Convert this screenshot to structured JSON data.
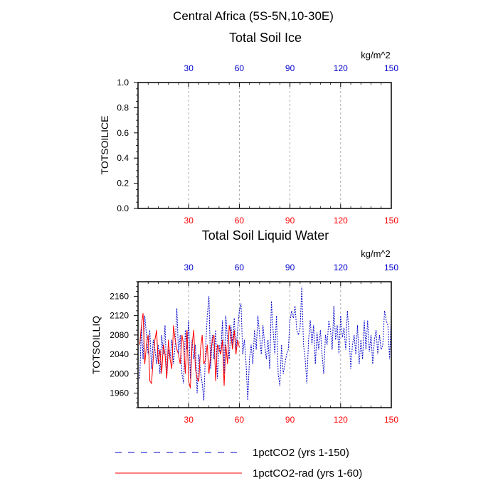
{
  "figure": {
    "title": "Central Africa (5S-5N,10-30E)",
    "legend": [
      {
        "label": "1pctCO2 (yrs 1-150)",
        "color": "#0000cc",
        "style": "dashed"
      },
      {
        "label": "1pctCO2-rad (yrs 1-60)",
        "color": "#ff0000",
        "style": "solid"
      }
    ]
  },
  "colors": {
    "blue_axis": "#0000cc",
    "red_axis": "#ff0000",
    "grid": "#9a9a9a"
  },
  "chart_data": [
    {
      "type": "line",
      "title": "Total Soil Ice",
      "ylabel": "TOTSOILICE",
      "unit": "kg/m^2",
      "xlim": [
        0,
        150
      ],
      "ylim": [
        0,
        1
      ],
      "x_ticks": [
        30,
        60,
        90,
        120,
        150
      ],
      "y_ticks": [
        "0.0",
        "0.2",
        "0.4",
        "0.6",
        "0.8",
        "1.0"
      ],
      "y_tick_values": [
        0,
        0.2,
        0.4,
        0.6,
        0.8,
        1.0
      ],
      "grid": "vertical dashed at x ticks",
      "series": []
    },
    {
      "type": "line",
      "title": "Total Soil Liquid Water",
      "ylabel": "TOTSOILLIQ",
      "unit": "kg/m^2",
      "xlim": [
        0,
        150
      ],
      "ylim": [
        1930,
        2190
      ],
      "x_ticks": [
        30,
        60,
        90,
        120,
        150
      ],
      "y_ticks": [
        "1960",
        "2000",
        "2040",
        "2080",
        "2120",
        "2160"
      ],
      "y_tick_values": [
        1960,
        2000,
        2040,
        2080,
        2120,
        2160
      ],
      "grid": "vertical dashed at x ticks",
      "series": [
        {
          "name": "1pctCO2 (yrs 1-150)",
          "color": "#0000cc",
          "style": "dashed",
          "x_start": 1,
          "values": [
            1990,
            2100,
            2030,
            2120,
            2080,
            2040,
            2090,
            2010,
            2070,
            2050,
            2020,
            2060,
            2000,
            2080,
            2040,
            2100,
            1990,
            2050,
            2030,
            2070,
            2020,
            2060,
            2135,
            2040,
            2080,
            2000,
            1980,
            2090,
            2050,
            2110,
            1990,
            2070,
            2030,
            2060,
            1960,
            2040,
            2005,
            1980,
            1945,
            2050,
            2120,
            2160,
            2010,
            2080,
            2030,
            2090,
            1990,
            2060,
            2040,
            2110,
            2000,
            2120,
            2070,
            2030,
            2100,
            2060,
            2115,
            2050,
            2090,
            2130,
            2145,
            2040,
            2070,
            2020,
            1945,
            2030,
            2060,
            2020,
            2090,
            2050,
            2120,
            2080,
            2040,
            2100,
            2060,
            2030,
            2070,
            2010,
            2150,
            2090,
            2040,
            2120,
            2000,
            1975,
            2060,
            2000,
            2020,
            2040,
            2050,
            2110,
            2130,
            2115,
            2140,
            2090,
            2080,
            2095,
            2180,
            2060,
            2030,
            1980,
            2070,
            2110,
            2060,
            2100,
            2020,
            2085,
            2050,
            2090,
            2040,
            2000,
            2080,
            2060,
            2110,
            2090,
            2050,
            2140,
            2070,
            2100,
            2040,
            2120,
            2075,
            2095,
            2050,
            2130,
            2080,
            2010,
            2060,
            2080,
            2040,
            2100,
            2020,
            2070,
            2030,
            2110,
            2050,
            2110,
            2045,
            2080,
            2020,
            2070,
            2090,
            2040,
            2080,
            2050,
            2060,
            2130,
            2110,
            2100,
            2030,
            2120
          ]
        },
        {
          "name": "1pctCO2-rad (yrs 1-60)",
          "color": "#ff0000",
          "style": "solid",
          "x_start": 1,
          "values": [
            2060,
            2100,
            2125,
            2020,
            2060,
            2080,
            1985,
            1980,
            2030,
            2070,
            2090,
            2020,
            2050,
            2000,
            2060,
            2040,
            1990,
            2070,
            2030,
            2010,
            2100,
            2070,
            2050,
            2040,
            2020,
            2080,
            2060,
            2000,
            2090,
            1985,
            1970,
            2060,
            2090,
            2010,
            1990,
            1985,
            2050,
            2080,
            2020,
            2030,
            2060,
            2000,
            2040,
            2070,
            2080,
            1985,
            2060,
            2050,
            2040,
            2070,
            1975,
            2060,
            2020,
            2100,
            2080,
            2050,
            2090,
            2040,
            2070,
            2055
          ]
        }
      ]
    }
  ]
}
